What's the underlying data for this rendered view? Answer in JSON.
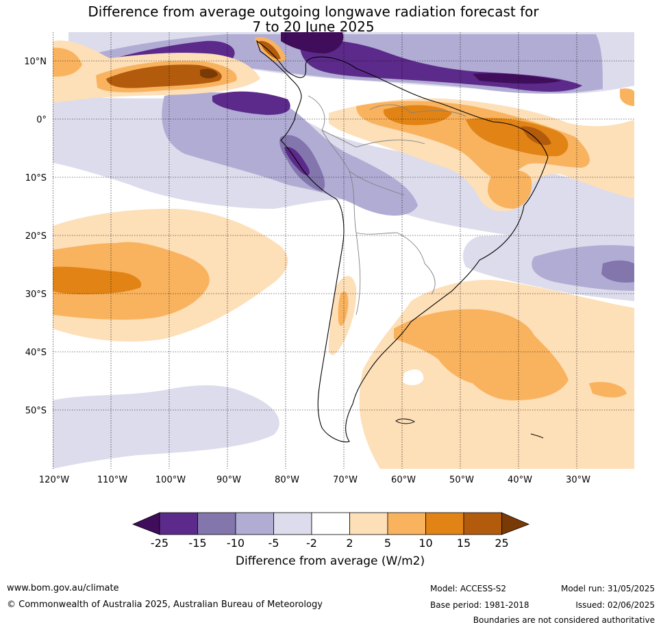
{
  "title": {
    "line1": "Difference from average outgoing longwave radiation forecast for",
    "line2": "7 to 20 June 2025"
  },
  "map": {
    "lon_labels": [
      "120°W",
      "110°W",
      "100°W",
      "90°W",
      "80°W",
      "70°W",
      "60°W",
      "50°W",
      "40°W",
      "30°W"
    ],
    "lat_labels": [
      "10°N",
      "0°",
      "10°S",
      "20°S",
      "30°S",
      "40°S",
      "50°S"
    ],
    "colors": {
      "n25": "#3f0d5a",
      "n15": "#5c2a8a",
      "n10": "#8276ad",
      "n5": "#b1acd4",
      "n2": "#dcdcec",
      "p2": "#fddfb8",
      "p5": "#f9b35f",
      "p10": "#e28415",
      "p15": "#b35b0c",
      "p25": "#7a3a06"
    }
  },
  "colorbar": {
    "ticks": [
      "-25",
      "-15",
      "-10",
      "-5",
      "-2",
      "2",
      "5",
      "10",
      "15",
      "25"
    ],
    "label": "Difference from average (W/m2)"
  },
  "footer": {
    "website": "www.bom.gov.au/climate",
    "copyright": "© Commonwealth of Australia 2025, Australian Bureau of Meteorology",
    "model": "Model: ACCESS-S2",
    "base_period": "Base period: 1981-2018",
    "model_run": "Model run: 31/05/2025",
    "issued": "Issued: 02/06/2025",
    "disclaimer": "Boundaries are not considered authoritative"
  }
}
